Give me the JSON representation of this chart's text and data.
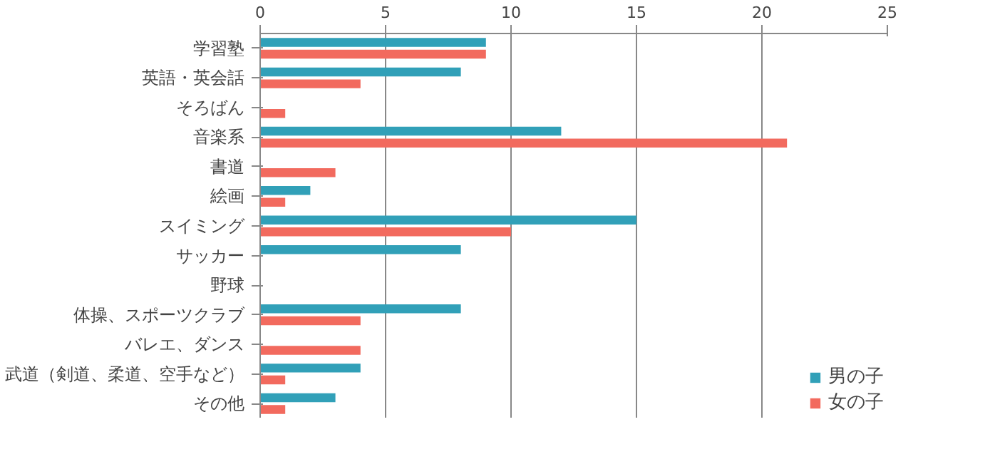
{
  "chart_data": {
    "type": "bar",
    "orientation": "horizontal",
    "categories": [
      "学習塾",
      "英語・英会話",
      "そろばん",
      "音楽系",
      "書道",
      "絵画",
      "スイミング",
      "サッカー",
      "野球",
      "体操、スポーツクラブ",
      "バレエ、ダンス",
      "武道（剣道、柔道、空手など）",
      "その他"
    ],
    "series": [
      {
        "name": "男の子",
        "color": "#31a0b8",
        "values": [
          9,
          8,
          0,
          12,
          0,
          2,
          15,
          8,
          0,
          8,
          0,
          4,
          3
        ]
      },
      {
        "name": "女の子",
        "color": "#f26a5e",
        "values": [
          9,
          4,
          1,
          21,
          3,
          1,
          10,
          0,
          0,
          4,
          4,
          1,
          1
        ]
      }
    ],
    "xlim": [
      0,
      25
    ],
    "xticks": [
      0,
      5,
      10,
      15,
      20,
      25
    ],
    "grid": "x",
    "legend": "bottom right"
  }
}
